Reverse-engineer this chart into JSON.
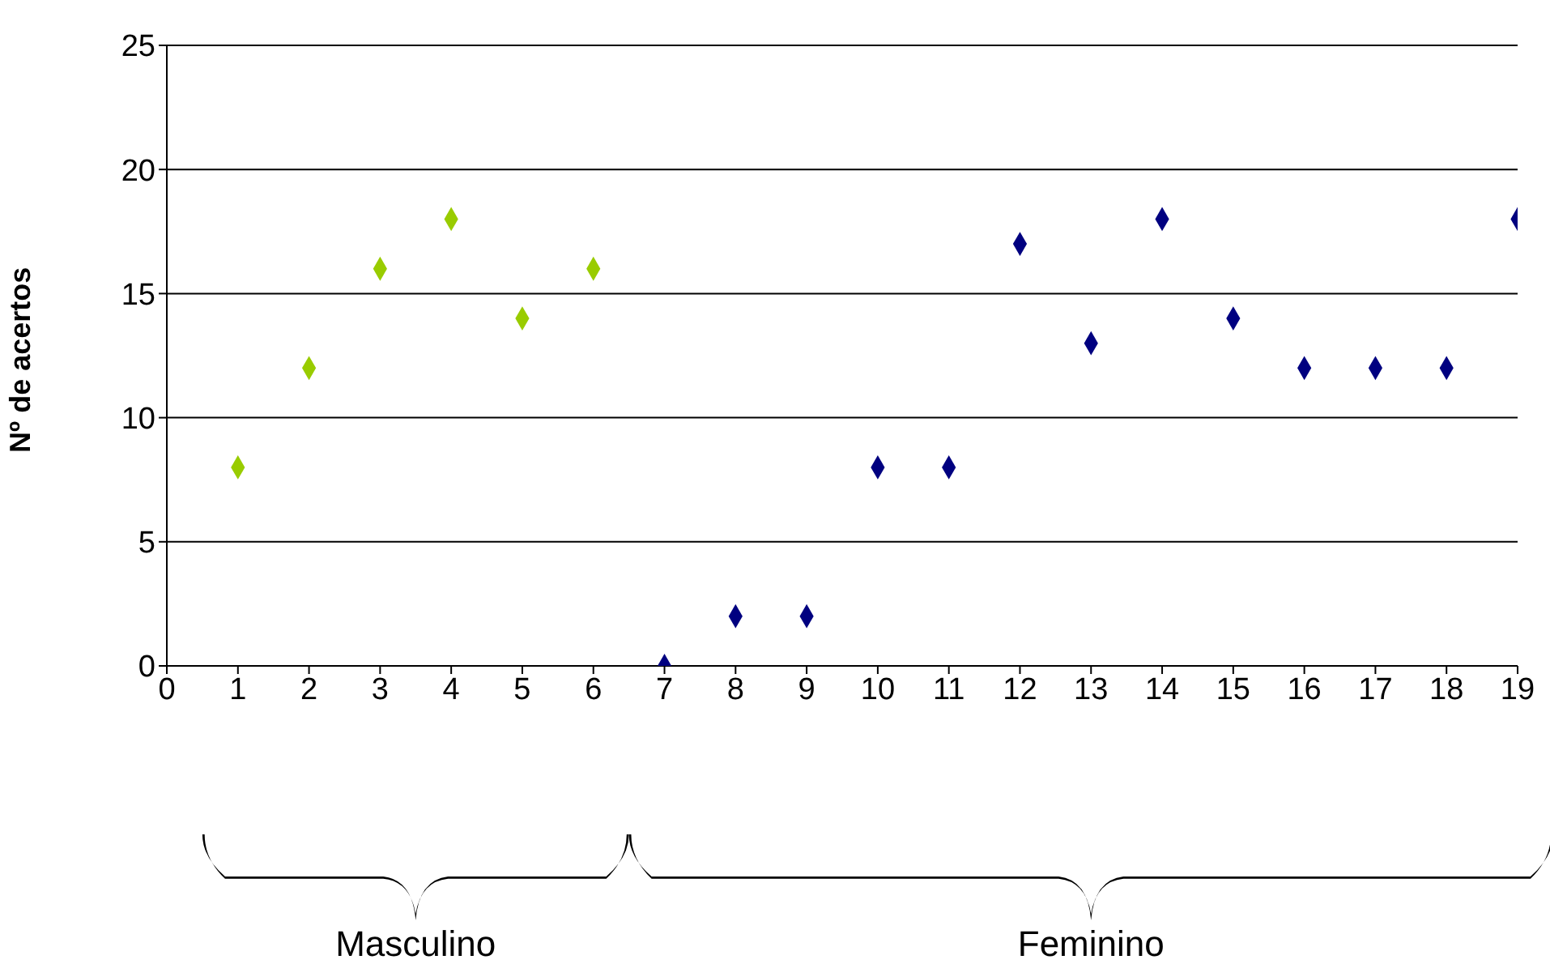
{
  "chart_data": {
    "type": "scatter",
    "ylabel": "Nº de acertos",
    "xlim": [
      0,
      19
    ],
    "xticks": [
      0,
      1,
      2,
      3,
      4,
      5,
      6,
      7,
      8,
      9,
      10,
      11,
      12,
      13,
      14,
      15,
      16,
      17,
      18,
      19
    ],
    "ylim": [
      0,
      25
    ],
    "yticks": [
      0,
      5,
      10,
      15,
      20,
      25
    ],
    "grid": "y",
    "marker": "diamond",
    "annotations": [
      "Masculino",
      "Feminino"
    ],
    "series": [
      {
        "color": "#99cc00",
        "x": [
          1,
          2,
          3,
          4,
          5,
          6
        ],
        "values": [
          8,
          12,
          16,
          18,
          14,
          16
        ]
      },
      {
        "color": "#000080",
        "x": [
          7,
          8,
          9,
          10,
          11,
          12,
          13,
          14,
          15,
          16,
          17,
          18,
          19
        ],
        "values": [
          0,
          2,
          2,
          8,
          8,
          17,
          13,
          18,
          14,
          12,
          12,
          12,
          18
        ]
      }
    ]
  }
}
